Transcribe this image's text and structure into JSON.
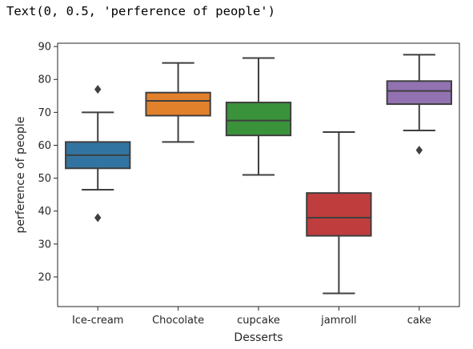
{
  "output": {
    "text": "Text(0, 0.5, 'perference of people')"
  },
  "chart_data": {
    "type": "box",
    "title": "",
    "xlabel": "Desserts",
    "ylabel": "perference of people",
    "ylim": [
      11,
      91
    ],
    "yticks": [
      20,
      30,
      40,
      50,
      60,
      70,
      80,
      90
    ],
    "grid": false,
    "categories": [
      "Ice-cream",
      "Chocolate",
      "cupcake",
      "jamroll",
      "cake"
    ],
    "boxes": [
      {
        "category": "Ice-cream",
        "whisker_low": 46.5,
        "q1": 53,
        "median": 57,
        "q3": 61,
        "whisker_high": 70,
        "outliers": [
          77,
          38
        ],
        "color": "#3274a1"
      },
      {
        "category": "Chocolate",
        "whisker_low": 61,
        "q1": 69,
        "median": 73.5,
        "q3": 76,
        "whisker_high": 85,
        "outliers": [],
        "color": "#e1812c"
      },
      {
        "category": "cupcake",
        "whisker_low": 51,
        "q1": 63,
        "median": 67.5,
        "q3": 73,
        "whisker_high": 86.5,
        "outliers": [],
        "color": "#3a923a"
      },
      {
        "category": "jamroll",
        "whisker_low": 15,
        "q1": 32.5,
        "median": 38,
        "q3": 45.5,
        "whisker_high": 64,
        "outliers": [],
        "color": "#c03d3e"
      },
      {
        "category": "cake",
        "whisker_low": 64.5,
        "q1": 72.5,
        "median": 76.5,
        "q3": 79.5,
        "whisker_high": 87.5,
        "outliers": [
          58.5
        ],
        "color": "#9372b2"
      }
    ]
  }
}
